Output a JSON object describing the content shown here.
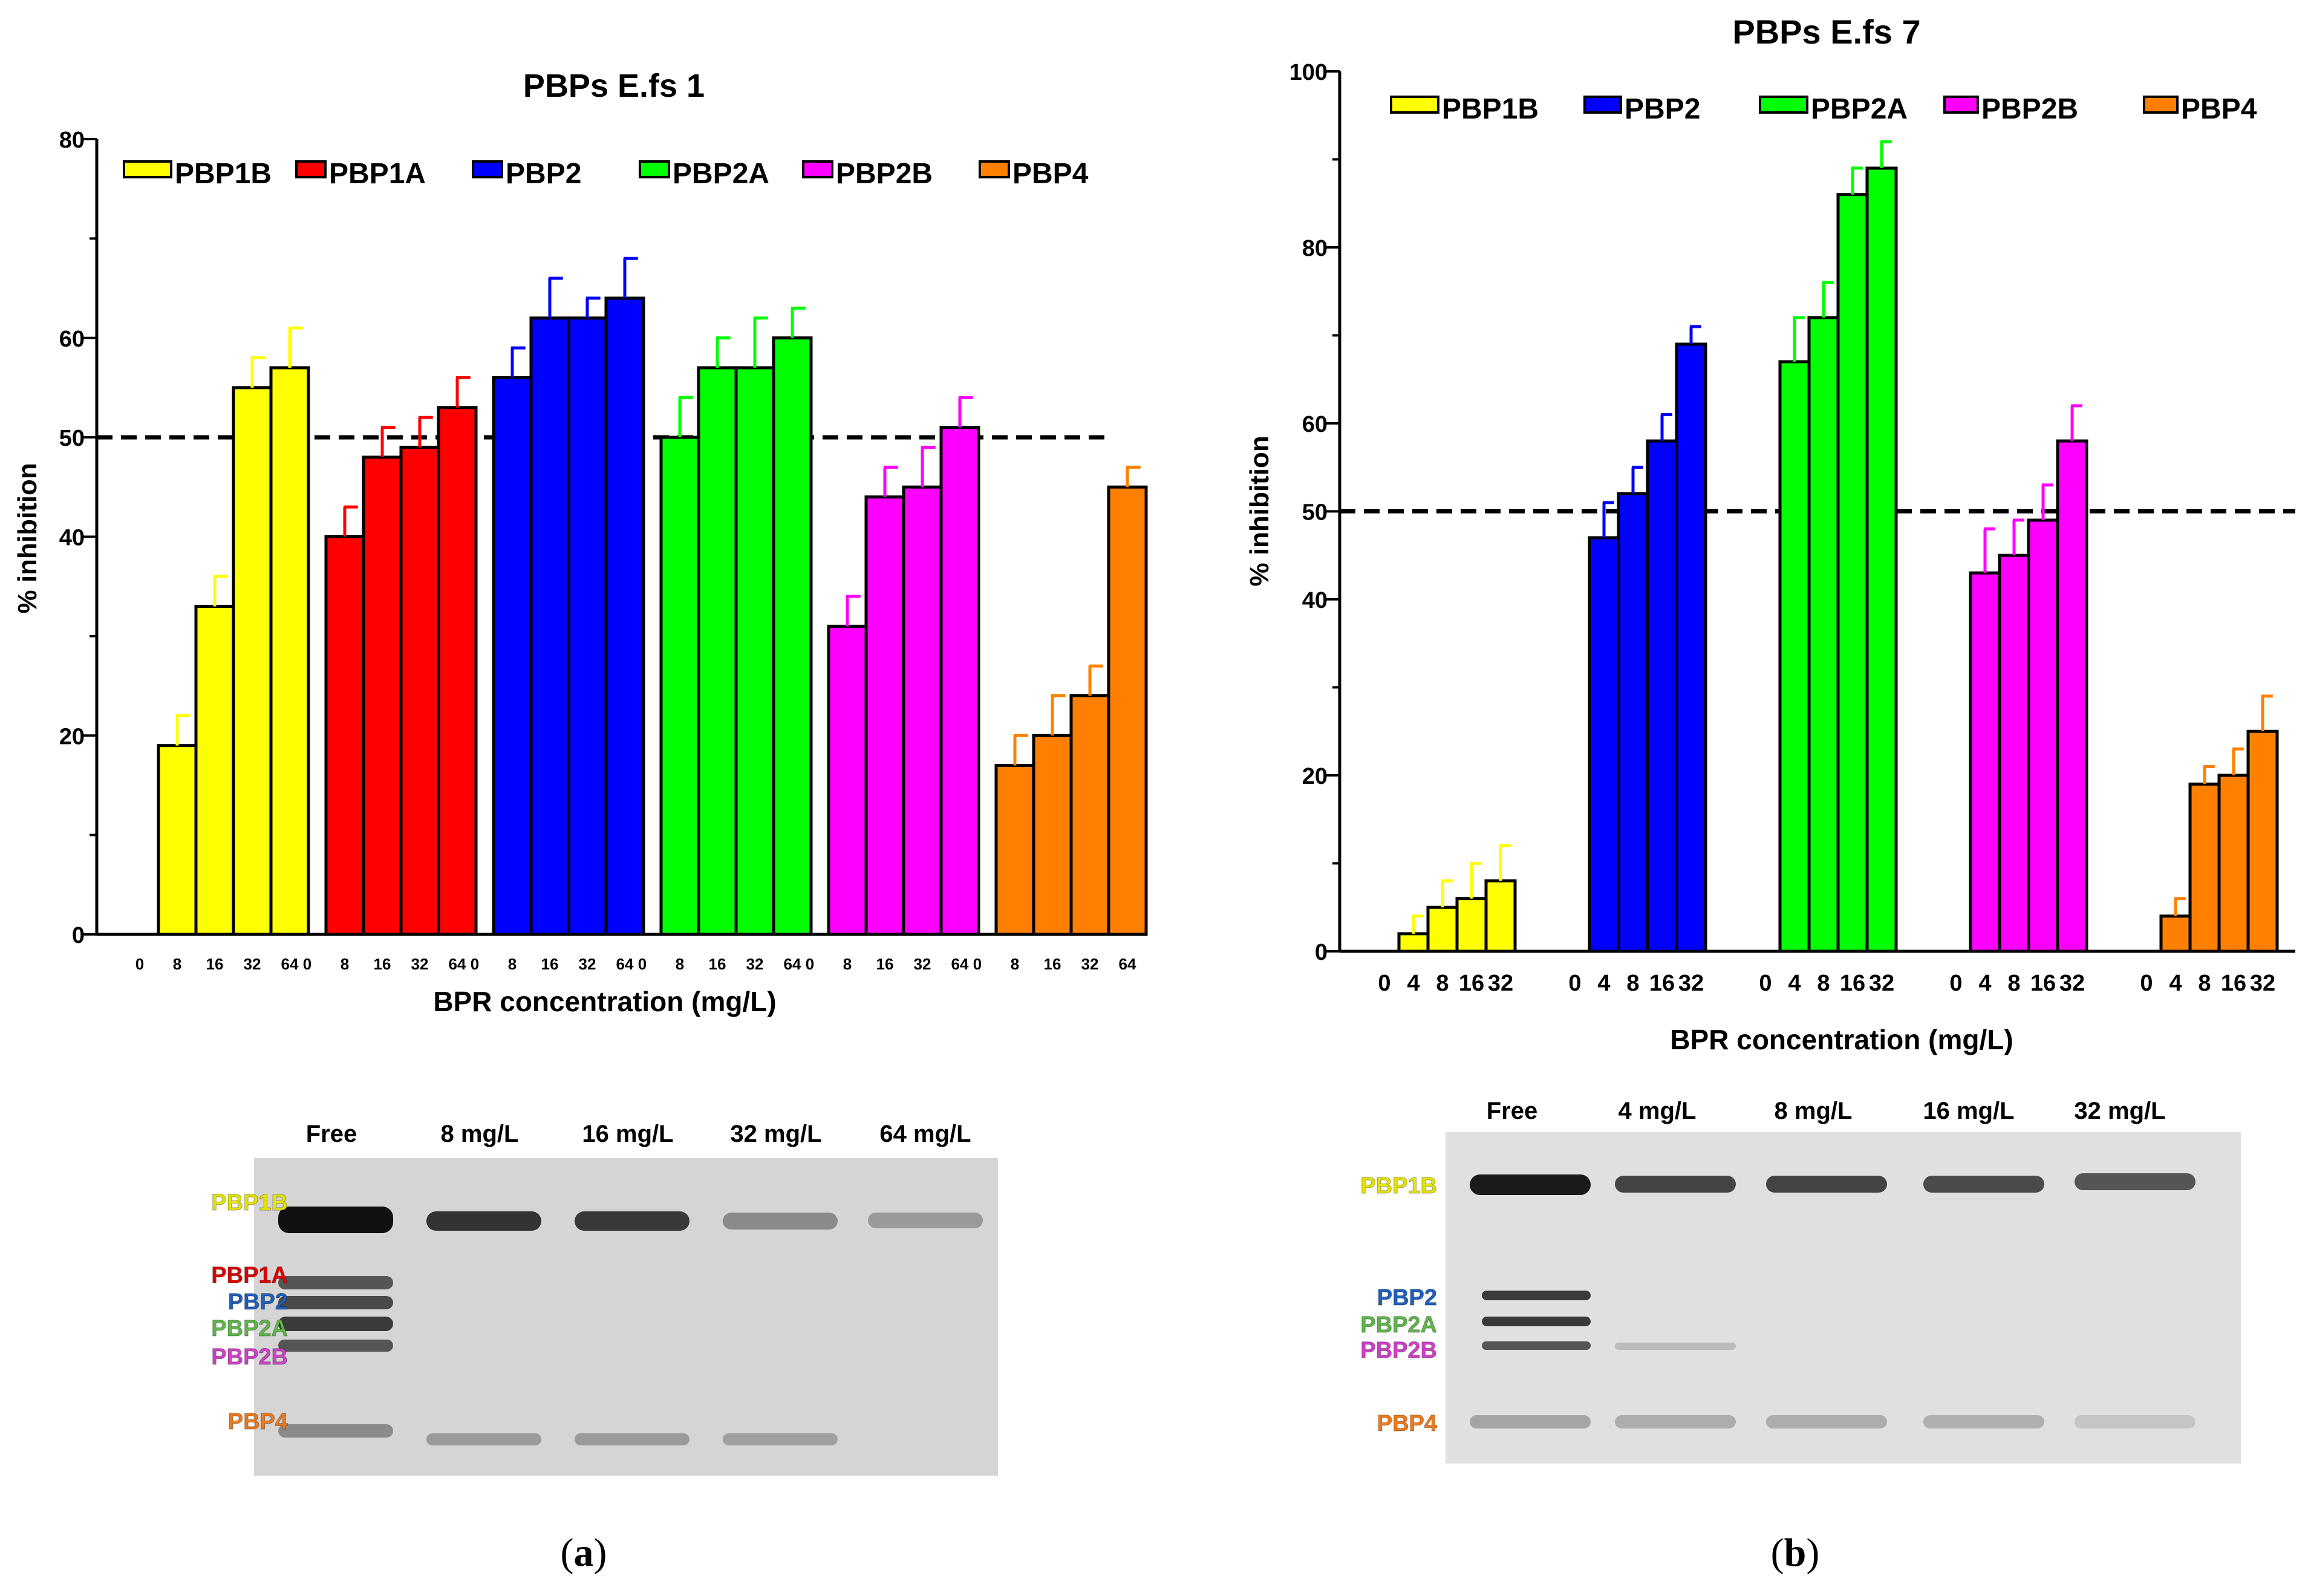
{
  "chart_data": [
    {
      "type": "bar",
      "title": "PBPs E.fs 1",
      "xlabel": "BPR concentration (mg/L)",
      "ylabel": "% inhibition",
      "ylim": [
        0,
        80
      ],
      "yticks": [
        0,
        20,
        40,
        50,
        60,
        80
      ],
      "threshold": 50,
      "concentrations": [
        "0",
        "8",
        "16",
        "32",
        "64"
      ],
      "legend_position": "top",
      "series": [
        {
          "name": "PBP1B",
          "color": "#ffff00",
          "values": [
            0,
            19,
            33,
            55,
            57
          ],
          "errors": [
            0,
            3,
            3,
            3,
            4
          ]
        },
        {
          "name": "PBP1A",
          "color": "#ff0000",
          "values": [
            0,
            40,
            48,
            49,
            53
          ],
          "errors": [
            0,
            3,
            3,
            3,
            3
          ]
        },
        {
          "name": "PBP2",
          "color": "#0000ff",
          "values": [
            0,
            56,
            62,
            62,
            64
          ],
          "errors": [
            0,
            3,
            4,
            2,
            4
          ]
        },
        {
          "name": "PBP2A",
          "color": "#00ff00",
          "values": [
            0,
            50,
            57,
            57,
            60
          ],
          "errors": [
            0,
            4,
            3,
            5,
            3
          ]
        },
        {
          "name": "PBP2B",
          "color": "#ff00ff",
          "values": [
            0,
            31,
            44,
            45,
            51
          ],
          "errors": [
            0,
            3,
            3,
            4,
            3
          ]
        },
        {
          "name": "PBP4",
          "color": "#ff8000",
          "values": [
            0,
            17,
            20,
            24,
            45
          ],
          "errors": [
            0,
            3,
            4,
            3,
            2
          ]
        }
      ]
    },
    {
      "type": "bar",
      "title": "PBPs E.fs 7",
      "xlabel": "BPR concentration (mg/L)",
      "ylabel": "% inhibition",
      "ylim": [
        0,
        100
      ],
      "yticks": [
        0,
        20,
        40,
        50,
        60,
        80,
        100
      ],
      "threshold": 50,
      "concentrations": [
        "0",
        "4",
        "8",
        "16",
        "32"
      ],
      "legend_position": "top",
      "series": [
        {
          "name": "PBP1B",
          "color": "#ffff00",
          "values": [
            0,
            2,
            5,
            6,
            8
          ],
          "errors": [
            0,
            2,
            3,
            4,
            4
          ]
        },
        {
          "name": "PBP2",
          "color": "#0000ff",
          "values": [
            0,
            47,
            52,
            58,
            69
          ],
          "errors": [
            0,
            4,
            3,
            3,
            2
          ]
        },
        {
          "name": "PBP2A",
          "color": "#00ff00",
          "values": [
            0,
            67,
            72,
            86,
            89
          ],
          "errors": [
            0,
            5,
            4,
            3,
            3
          ]
        },
        {
          "name": "PBP2B",
          "color": "#ff00ff",
          "values": [
            0,
            43,
            45,
            49,
            58
          ],
          "errors": [
            0,
            5,
            4,
            4,
            4
          ]
        },
        {
          "name": "PBP4",
          "color": "#ff8000",
          "values": [
            0,
            4,
            19,
            20,
            25
          ],
          "errors": [
            0,
            2,
            2,
            3,
            4
          ]
        }
      ]
    }
  ],
  "gels": [
    {
      "lanes": [
        "Free",
        "8 mg/L",
        "16 mg/L",
        "32 mg/L",
        "64 mg/L"
      ],
      "labels": [
        {
          "text": "PBP1B",
          "color": "#e6e600"
        },
        {
          "text": "PBP1A",
          "color": "#e00000"
        },
        {
          "text": "PBP2",
          "color": "#1f5fbf"
        },
        {
          "text": "PBP2A",
          "color": "#5fb84a"
        },
        {
          "text": "PBP2B",
          "color": "#d040c8"
        },
        {
          "text": "PBP4",
          "color": "#f07a1a"
        }
      ]
    },
    {
      "lanes": [
        "Free",
        "4 mg/L",
        "8 mg/L",
        "16 mg/L",
        "32 mg/L"
      ],
      "labels": [
        {
          "text": "PBP1B",
          "color": "#e6e600"
        },
        {
          "text": "PBP2",
          "color": "#1f5fbf"
        },
        {
          "text": "PBP2A",
          "color": "#5fb84a"
        },
        {
          "text": "PBP2B",
          "color": "#d040c8"
        },
        {
          "text": "PBP4",
          "color": "#f07a1a"
        }
      ]
    }
  ],
  "panels": {
    "a": "a",
    "b": "b"
  }
}
